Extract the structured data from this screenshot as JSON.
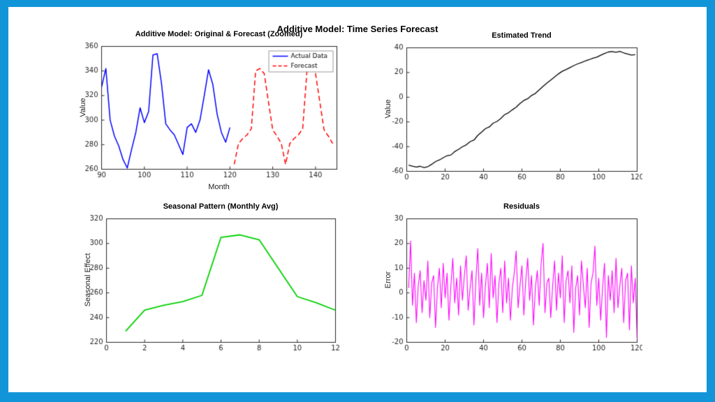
{
  "figure": {
    "title": "Additive Model: Time Series Forecast",
    "frame_color": "#1295d8",
    "background": "#ffffff"
  },
  "chart_data": [
    {
      "id": "original-forecast-zoomed",
      "type": "line",
      "title": "Additive Model: Original & Forecast (Zoomed)",
      "xlabel": "Month",
      "ylabel": "Value",
      "xlim": [
        90,
        145
      ],
      "ylim": [
        260,
        360
      ],
      "xticks": [
        90,
        100,
        110,
        120,
        130,
        140
      ],
      "yticks": [
        260,
        280,
        300,
        320,
        340,
        360
      ],
      "grid": false,
      "legend": {
        "show": true,
        "position": "northeast"
      },
      "series": [
        {
          "name": "Actual Data",
          "color": "#0000ff",
          "style": "solid",
          "width": 1.5,
          "x0": 90,
          "dx": 1,
          "y": [
            327,
            342,
            300,
            287,
            279,
            268,
            261,
            276,
            290,
            310,
            298,
            307,
            353,
            354,
            330,
            297,
            292,
            288,
            280,
            272,
            294,
            297,
            290,
            300,
            320,
            341,
            329,
            305,
            290,
            282,
            294
          ]
        },
        {
          "name": "Forecast",
          "color": "#ff0000",
          "style": "dashed",
          "width": 1.5,
          "x0": 121,
          "dx": 1,
          "y": [
            264,
            281,
            285,
            288,
            293,
            340,
            342,
            338,
            315,
            292,
            287,
            281,
            264,
            281,
            285,
            288,
            293,
            340,
            342,
            338,
            315,
            292,
            287,
            281
          ]
        }
      ]
    },
    {
      "id": "estimated-trend",
      "type": "line",
      "title": "Estimated Trend",
      "xlabel": "",
      "ylabel": "Value",
      "xlim": [
        0,
        120
      ],
      "ylim": [
        -60,
        40
      ],
      "xticks": [
        0,
        20,
        40,
        60,
        80,
        100,
        120
      ],
      "yticks": [
        -60,
        -40,
        -20,
        0,
        20,
        40
      ],
      "grid": false,
      "series": [
        {
          "name": "Trend",
          "color": "#000000",
          "style": "solid",
          "width": 1.3,
          "x": [
            1,
            3,
            5,
            7,
            9,
            11,
            13,
            15,
            17,
            19,
            21,
            23,
            25,
            27,
            29,
            31,
            33,
            35,
            37,
            39,
            41,
            43,
            45,
            47,
            49,
            51,
            53,
            55,
            57,
            59,
            61,
            63,
            65,
            67,
            69,
            71,
            73,
            75,
            77,
            79,
            81,
            83,
            85,
            87,
            89,
            91,
            93,
            95,
            97,
            99,
            101,
            103,
            105,
            107,
            109,
            111,
            113,
            115,
            117,
            119
          ],
          "y": [
            -55,
            -55.8,
            -56.5,
            -55.9,
            -57,
            -56.2,
            -54.3,
            -52.1,
            -50.8,
            -49,
            -47.3,
            -46.8,
            -44,
            -42.2,
            -40.1,
            -38.6,
            -36,
            -34.7,
            -30.9,
            -28.2,
            -25.4,
            -24.1,
            -21,
            -19.6,
            -17.2,
            -14.1,
            -12.6,
            -10.2,
            -8,
            -5.1,
            -2.6,
            -1.2,
            1.4,
            3.1,
            5.9,
            8.8,
            11.4,
            13.9,
            16.4,
            18.9,
            21,
            22.4,
            24,
            25.6,
            27,
            28.1,
            29.4,
            30.4,
            31.6,
            32.4,
            34,
            35.4,
            36.6,
            37,
            36.4,
            37.1,
            35.9,
            35,
            34.1,
            34.4
          ]
        }
      ]
    },
    {
      "id": "seasonal-pattern",
      "type": "line",
      "title": "Seasonal Pattern (Monthly Avg)",
      "xlabel": "",
      "ylabel": "Seasonal Effect",
      "xlim": [
        0,
        12
      ],
      "ylim": [
        220,
        320
      ],
      "xticks": [
        0,
        2,
        4,
        6,
        8,
        10,
        12
      ],
      "yticks": [
        220,
        240,
        260,
        280,
        300,
        320
      ],
      "grid": false,
      "series": [
        {
          "name": "Seasonal Effect",
          "color": "#00d000",
          "style": "solid",
          "width": 1.8,
          "x0": 1,
          "dx": 1,
          "y": [
            229,
            246,
            250,
            253,
            258,
            305,
            307,
            303,
            280,
            257,
            252,
            246
          ]
        }
      ]
    },
    {
      "id": "residuals",
      "type": "line",
      "title": "Residuals",
      "xlabel": "",
      "ylabel": "Error",
      "xlim": [
        0,
        120
      ],
      "ylim": [
        -20,
        30
      ],
      "xticks": [
        0,
        20,
        40,
        60,
        80,
        100,
        120
      ],
      "yticks": [
        -20,
        -10,
        0,
        10,
        20,
        30
      ],
      "grid": false,
      "series": [
        {
          "name": "Residual",
          "color": "#ff00ff",
          "style": "solid",
          "width": 1.1,
          "x0": 1,
          "dx": 1,
          "y": [
            2,
            21,
            -5,
            8,
            -12,
            3,
            9,
            -8,
            5,
            -3,
            13,
            -10,
            4,
            7,
            -14,
            2,
            10,
            -6,
            12,
            -2,
            8,
            -11,
            3,
            14,
            -4,
            6,
            -9,
            11,
            -3,
            7,
            15,
            -7,
            2,
            9,
            -13,
            5,
            18,
            -5,
            8,
            -10,
            3,
            12,
            -6,
            16,
            -2,
            7,
            -12,
            4,
            10,
            -8,
            13,
            -4,
            6,
            -11,
            2,
            8,
            17,
            -6,
            3,
            11,
            -9,
            5,
            14,
            -3,
            7,
            -13,
            2,
            9,
            -5,
            12,
            20,
            -8,
            4,
            6,
            -10,
            3,
            13,
            -7,
            8,
            -2,
            15,
            -12,
            5,
            9,
            -4,
            11,
            -16,
            2,
            7,
            -9,
            13,
            3,
            -6,
            10,
            -14,
            4,
            8,
            19,
            -5,
            6,
            -11,
            2,
            12,
            -18,
            7,
            -3,
            9,
            -8,
            14,
            -6,
            3,
            10,
            -12,
            5,
            8,
            -15,
            11,
            -4,
            6,
            -19
          ]
        }
      ]
    }
  ]
}
